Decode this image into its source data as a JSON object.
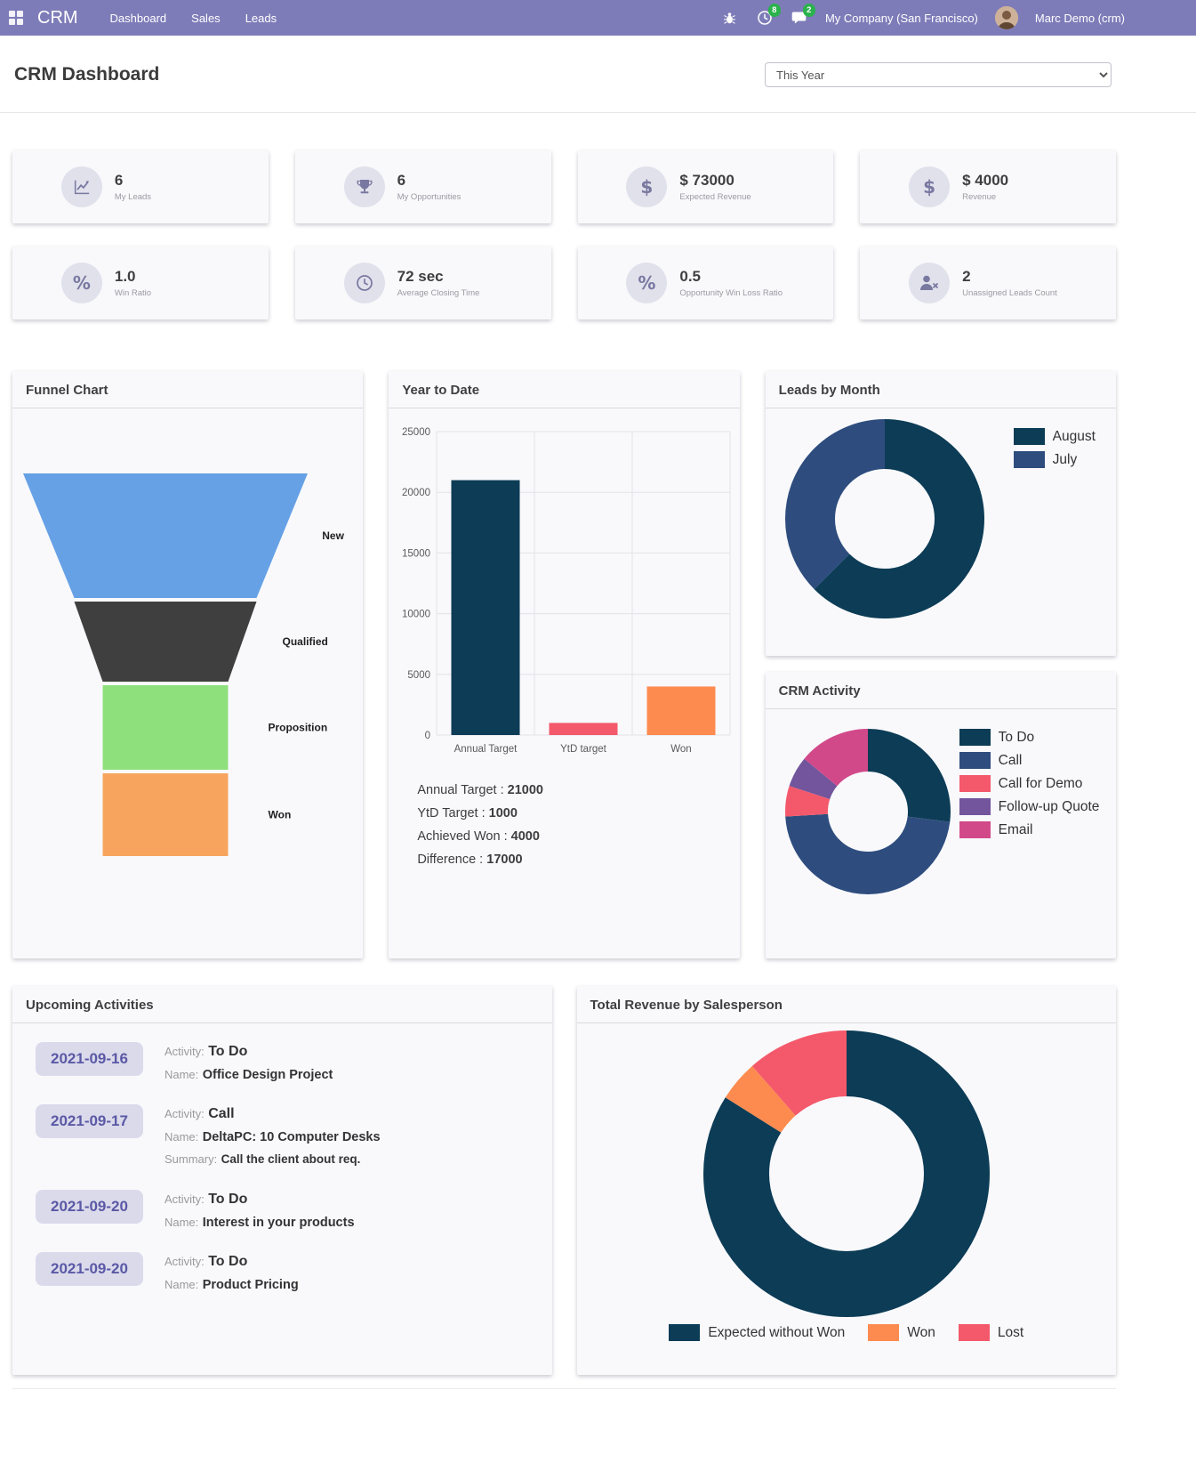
{
  "navbar": {
    "app_title": "CRM",
    "menu": [
      "Dashboard",
      "Sales",
      "Leads"
    ],
    "activity_badge": "8",
    "message_badge": "2",
    "company": "My Company (San Francisco)",
    "user": "Marc Demo (crm)"
  },
  "header": {
    "title": "CRM Dashboard",
    "period_selector": "This Year"
  },
  "theme": {
    "navbar_bg": "#7e7cb8",
    "badge_green": "#2ab24c",
    "card_bg": "#f9f9fc",
    "kpi_icon_bg": "#e1e1ec",
    "kpi_icon_color": "#7878a0",
    "date_pill_bg": "#dadaeb",
    "date_pill_text": "#5b59a5"
  },
  "kpis": [
    {
      "icon": "line-chart-icon",
      "value": "6",
      "label": "My Leads"
    },
    {
      "icon": "trophy-icon",
      "value": "6",
      "label": "My Opportunities"
    },
    {
      "icon": "dollar-icon",
      "value": "$ 73000",
      "label": "Expected Revenue"
    },
    {
      "icon": "dollar-icon",
      "value": "$ 4000",
      "label": "Revenue"
    },
    {
      "icon": "percent-icon",
      "value": "1.0",
      "label": "Win Ratio"
    },
    {
      "icon": "clock-icon",
      "value": "72 sec",
      "label": "Average Closing Time"
    },
    {
      "icon": "percent-icon",
      "value": "0.5",
      "label": "Opportunity Win Loss Ratio"
    },
    {
      "icon": "user-x-icon",
      "value": "2",
      "label": "Unassigned Leads Count"
    }
  ],
  "chart_data": [
    {
      "type": "funnel",
      "title": "Funnel Chart",
      "stages": [
        {
          "label": "New",
          "color": "#66a1e5",
          "tw": 320,
          "bw": 205,
          "h": 140
        },
        {
          "label": "Qualified",
          "color": "#3f3f3f",
          "tw": 205,
          "bw": 141,
          "h": 90
        },
        {
          "label": "Proposition",
          "color": "#8ee07d",
          "tw": 141,
          "bw": 141,
          "h": 95
        },
        {
          "label": "Won",
          "color": "#f7a55e",
          "tw": 141,
          "bw": 141,
          "h": 93
        }
      ]
    },
    {
      "type": "bar",
      "title": "Year to Date",
      "categories": [
        "Annual Target",
        "YtD target",
        "Won"
      ],
      "values": [
        21000,
        1000,
        4000
      ],
      "colors": [
        "#0c3c56",
        "#f4596b",
        "#fd8b50"
      ],
      "ylim": [
        0,
        25000
      ],
      "ytick_step": 5000,
      "grid": true,
      "summary": [
        {
          "label": "Annual Target :",
          "value": "21000"
        },
        {
          "label": "YtD Target :",
          "value": "1000"
        },
        {
          "label": "Achieved Won :",
          "value": "4000"
        },
        {
          "label": "Difference :",
          "value": "17000"
        }
      ]
    },
    {
      "type": "donut",
      "title": "Leads by Month",
      "labels": [
        "August",
        "July"
      ],
      "values": [
        62.5,
        37.5
      ],
      "colors": [
        "#0c3c56",
        "#2e4d7e"
      ],
      "legend_position": "right"
    },
    {
      "type": "donut",
      "title": "CRM Activity",
      "labels": [
        "To Do",
        "Call",
        "Call for Demo",
        "Follow-up Quote",
        "Email"
      ],
      "values": [
        27,
        47,
        6,
        6,
        14
      ],
      "colors": [
        "#0c3c56",
        "#2e4d7e",
        "#f4596b",
        "#72559c",
        "#d2498a"
      ],
      "legend_position": "right"
    },
    {
      "type": "donut",
      "title": "Total Revenue by Salesperson",
      "labels": [
        "Expected without Won",
        "Won",
        "Lost"
      ],
      "values": [
        73000,
        4000,
        10000
      ],
      "colors": [
        "#0c3c56",
        "#fd8b50",
        "#f4596b"
      ],
      "legend_position": "bottom"
    }
  ],
  "activities": {
    "title": "Upcoming Activities",
    "field_labels": {
      "activity": "Activity:",
      "name": "Name:",
      "summary": "Summary:"
    },
    "items": [
      {
        "date": "2021-09-16",
        "activity": "To Do",
        "name": "Office Design Project"
      },
      {
        "date": "2021-09-17",
        "activity": "Call",
        "name": "DeltaPC: 10 Computer Desks",
        "summary": "Call the client about req."
      },
      {
        "date": "2021-09-20",
        "activity": "To Do",
        "name": "Interest in your products"
      },
      {
        "date": "2021-09-20",
        "activity": "To Do",
        "name": "Product Pricing"
      }
    ]
  }
}
